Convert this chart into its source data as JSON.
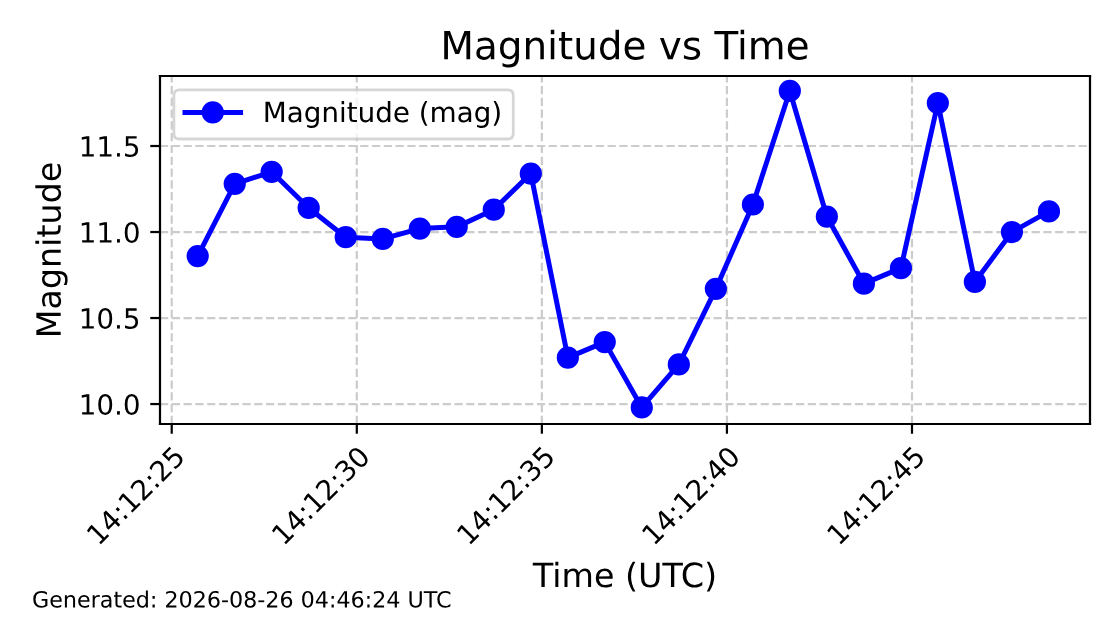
{
  "chart_data": {
    "type": "line",
    "title": "Magnitude vs Time",
    "xlabel": "Time (UTC)",
    "ylabel": "Magnitude",
    "annotations": [
      "Generated: 2026-08-26 04:46:24 UTC"
    ],
    "x": [
      14.207139,
      14.207417,
      14.207694,
      14.207972,
      14.20825,
      14.208528,
      14.208806,
      14.209083,
      14.209361,
      14.209639,
      14.209917,
      14.210194,
      14.210472,
      14.21075,
      14.211028,
      14.211306,
      14.211583,
      14.211861,
      14.212139,
      14.212417,
      14.212694,
      14.212972,
      14.21325,
      14.213528
    ],
    "series": [
      {
        "name": "Magnitude (mag)",
        "color": "#0000ff",
        "values": [
          10.86,
          11.28,
          11.35,
          11.14,
          10.97,
          10.96,
          11.02,
          11.03,
          11.13,
          11.34,
          10.27,
          10.36,
          9.98,
          10.23,
          10.67,
          11.16,
          11.82,
          11.09,
          10.7,
          10.79,
          11.75,
          10.71,
          11.0,
          11.12
        ]
      }
    ],
    "xlim": [
      14.206856,
      14.213836
    ],
    "ylim": [
      9.884,
      11.907
    ],
    "xticks": [
      {
        "value": 14.206944,
        "label": "14:12:25"
      },
      {
        "value": 14.208333,
        "label": "14:12:30"
      },
      {
        "value": 14.209722,
        "label": "14:12:35"
      },
      {
        "value": 14.211111,
        "label": "14:12:40"
      },
      {
        "value": 14.2125,
        "label": "14:12:45"
      }
    ],
    "yticks": [
      {
        "value": 10.0,
        "label": "10.0"
      },
      {
        "value": 10.5,
        "label": "10.5"
      },
      {
        "value": 11.0,
        "label": "11.0"
      },
      {
        "value": 11.5,
        "label": "11.5"
      }
    ],
    "grid": true,
    "legend": "top left",
    "marker": "circle",
    "line_style": "solid"
  }
}
